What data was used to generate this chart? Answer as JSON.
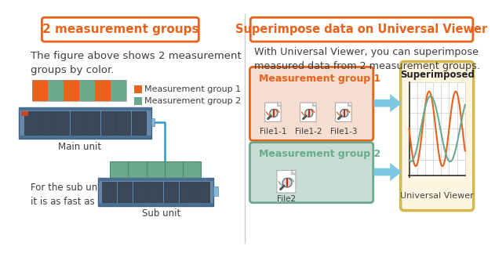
{
  "bg_color": "#ffffff",
  "left_title": "2 measurement groups",
  "right_title": "Superimpose data on Universal Viewer",
  "title_color": "#e8621a",
  "title_border_color": "#e8621a",
  "left_body1": "The figure above shows 2 measurement\ngroups by color.",
  "left_body2": "For the sub units,\nit is as fast as 100 ms.",
  "right_body": "With Universal Viewer, you can superimpose\nmeasured data from 2 measurement groups.",
  "body_color": "#3d3d3d",
  "legend1_label": "Measurement group 1",
  "legend2_label": "Measurement group 2",
  "group1_color": "#e8621a",
  "group2_color": "#6aab8e",
  "group1_box_fill": "#f5ddd0",
  "group1_box_edge": "#e8621a",
  "group2_box_fill": "#c8ddd6",
  "group2_box_edge": "#6aab8e",
  "group1_label": "Measurement group 1",
  "group2_label": "Measurement group 2",
  "file1_labels": [
    "File1-1",
    "File1-2",
    "File1-3"
  ],
  "file2_label": "File2",
  "viewer_box_fill": "#fdf5e0",
  "viewer_box_edge": "#d4b84a",
  "viewer_title": "Superimposed",
  "viewer_subtitle": "Universal Viewer",
  "arrow_color": "#7ec8e3",
  "wave1_color": "#e8621a",
  "wave2_color": "#6aab8e",
  "bar_colors": [
    "#e8621a",
    "#6aab8e",
    "#e8621a",
    "#6aab8e",
    "#e8621a",
    "#6aab8e"
  ],
  "plc_body_color": "#5a80aa",
  "plc_slot_color": "#3a4a5a",
  "plc_rail_color": "#3a5f88"
}
